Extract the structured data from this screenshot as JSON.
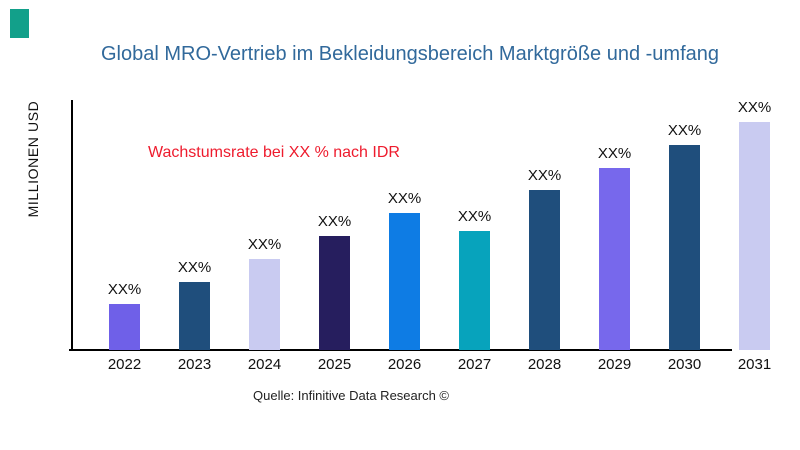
{
  "logo": {
    "name": "teal-square-logo",
    "color": "#12a08a"
  },
  "header": {
    "title": "Global MRO-Vertrieb im Bekleidungsbereich Marktgröße und -umfang",
    "title_color": "#31699b"
  },
  "annotation": {
    "text": "Wachstumsrate bei XX % nach IDR",
    "color": "#ee1b2d"
  },
  "footer": {
    "source": "Quelle: Infinitive Data Research ©"
  },
  "chart_data": {
    "type": "bar",
    "title": "Global MRO-Vertrieb im Bekleidungsbereich Marktgröße und -umfang",
    "xlabel": "",
    "ylabel": "MILLIONEN USD",
    "categories": [
      "2022",
      "2023",
      "2024",
      "2025",
      "2026",
      "2027",
      "2028",
      "2029",
      "2030",
      "2031"
    ],
    "bar_labels": [
      "XX%",
      "XX%",
      "XX%",
      "XX%",
      "XX%",
      "XX%",
      "XX%",
      "XX%",
      "XX%",
      "XX%"
    ],
    "values_relative": [
      0.2,
      0.3,
      0.4,
      0.5,
      0.6,
      0.52,
      0.7,
      0.8,
      0.9,
      1.0
    ],
    "bar_colors": [
      "#6f60e8",
      "#1f4e7c",
      "#c9cbf1",
      "#261e5e",
      "#0e7ce4",
      "#07a3bc",
      "#1f4e7c",
      "#7768ec",
      "#1f4e7c",
      "#c9cbf1"
    ],
    "annotation": "Wachstumsrate bei XX % nach IDR",
    "source": "Quelle: Infinitive Data Research ©",
    "grid": false,
    "legend": false,
    "axis_note": "no numeric y-ticks shown; values displayed only as XX% placeholders"
  }
}
